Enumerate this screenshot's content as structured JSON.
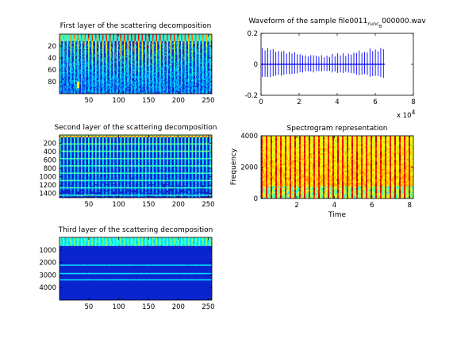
{
  "chart_data": [
    {
      "id": "first-layer",
      "type": "heatmap",
      "title": "First layer of the scattering decomposition",
      "xlabel": "",
      "ylabel": "",
      "xlim": [
        1,
        256
      ],
      "ylim": [
        0,
        100
      ],
      "y_reversed": true,
      "xticks": [
        50,
        100,
        150,
        200,
        250
      ],
      "yticks": [
        20,
        40,
        60,
        80
      ],
      "colormap": "jet",
      "band_count": 44,
      "grid": false
    },
    {
      "id": "second-layer",
      "type": "heatmap",
      "title": "Second layer of the scattering decomposition",
      "xlabel": "",
      "ylabel": "",
      "xlim": [
        1,
        256
      ],
      "ylim": [
        0,
        1500
      ],
      "y_reversed": true,
      "xticks": [
        50,
        100,
        150,
        200,
        250
      ],
      "yticks": [
        200,
        400,
        600,
        800,
        1000,
        1200,
        1400
      ],
      "colormap": "jet",
      "grid": false
    },
    {
      "id": "third-layer",
      "type": "heatmap",
      "title": "Third layer of the scattering decomposition",
      "xlabel": "",
      "ylabel": "",
      "xlim": [
        1,
        256
      ],
      "ylim": [
        0,
        5000
      ],
      "y_reversed": true,
      "xticks": [
        50,
        100,
        150,
        200,
        250
      ],
      "yticks": [
        1000,
        2000,
        3000,
        4000
      ],
      "colormap": "jet",
      "grid": false
    },
    {
      "id": "waveform",
      "type": "line",
      "title": "Waveform of the sample file0011",
      "title_sub": "runc",
      "title_sub2": "8",
      "title_end": "000000.wav",
      "xlabel": "",
      "ylabel": "",
      "xlim": [
        0,
        80000
      ],
      "ylim": [
        -0.2,
        0.2
      ],
      "xticks": [
        0,
        2,
        4,
        6,
        8
      ],
      "x_exponent_label": "x 10",
      "x_exponent": "4",
      "yticks": [
        "-0.2",
        "0",
        "0.2"
      ],
      "signal_length": 65000,
      "series_color": "#0000ff",
      "grid": false
    },
    {
      "id": "spectrogram",
      "type": "heatmap",
      "title": "Spectrogram representation",
      "xlabel": "Time",
      "ylabel": "Frequency",
      "xlim": [
        0.1,
        8.2
      ],
      "ylim": [
        0,
        4000
      ],
      "xticks": [
        2,
        4,
        6,
        8
      ],
      "yticks": [
        0,
        2000,
        4000
      ],
      "colormap": "jet",
      "grid": false
    }
  ]
}
